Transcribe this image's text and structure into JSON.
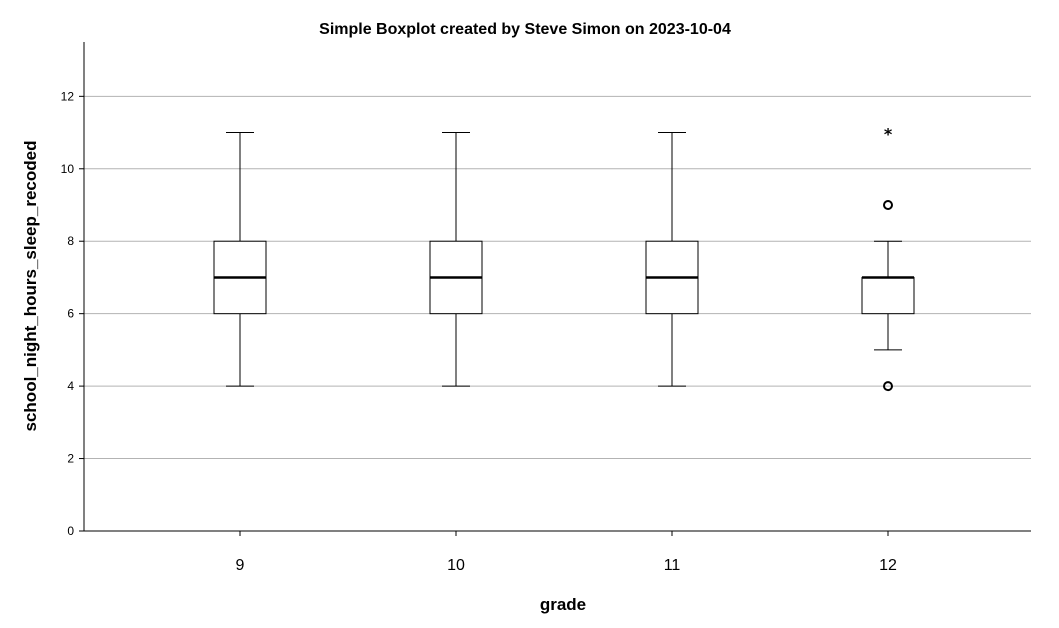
{
  "chart_data": {
    "type": "boxplot",
    "title": "Simple Boxplot created by Steve Simon on 2023-10-04",
    "xlabel": "grade",
    "ylabel": "school_night_hours_sleep_recoded",
    "ylim": [
      0,
      13.5
    ],
    "yticks": [
      0,
      2,
      4,
      6,
      8,
      10,
      12
    ],
    "ytick_labels": [
      "0",
      "2",
      "4",
      "6",
      "8",
      "10",
      "12"
    ],
    "grid": "horizontal",
    "categories": [
      "9",
      "10",
      "11",
      "12"
    ],
    "boxes": [
      {
        "whisker_low": 4,
        "q1": 6,
        "median": 7,
        "q3": 8,
        "whisker_high": 11,
        "outliers": [],
        "extremes": []
      },
      {
        "whisker_low": 4,
        "q1": 6,
        "median": 7,
        "q3": 8,
        "whisker_high": 11,
        "outliers": [],
        "extremes": []
      },
      {
        "whisker_low": 4,
        "q1": 6,
        "median": 7,
        "q3": 8,
        "whisker_high": 11,
        "outliers": [],
        "extremes": []
      },
      {
        "whisker_low": 5,
        "q1": 6,
        "median": 7,
        "q3": 7,
        "whisker_high": 8,
        "outliers": [
          4,
          9
        ],
        "extremes": [
          11
        ]
      }
    ],
    "colors": {
      "box_fill": "#ffffff",
      "stroke": "#000000",
      "grid": "#b3b3b3"
    }
  }
}
